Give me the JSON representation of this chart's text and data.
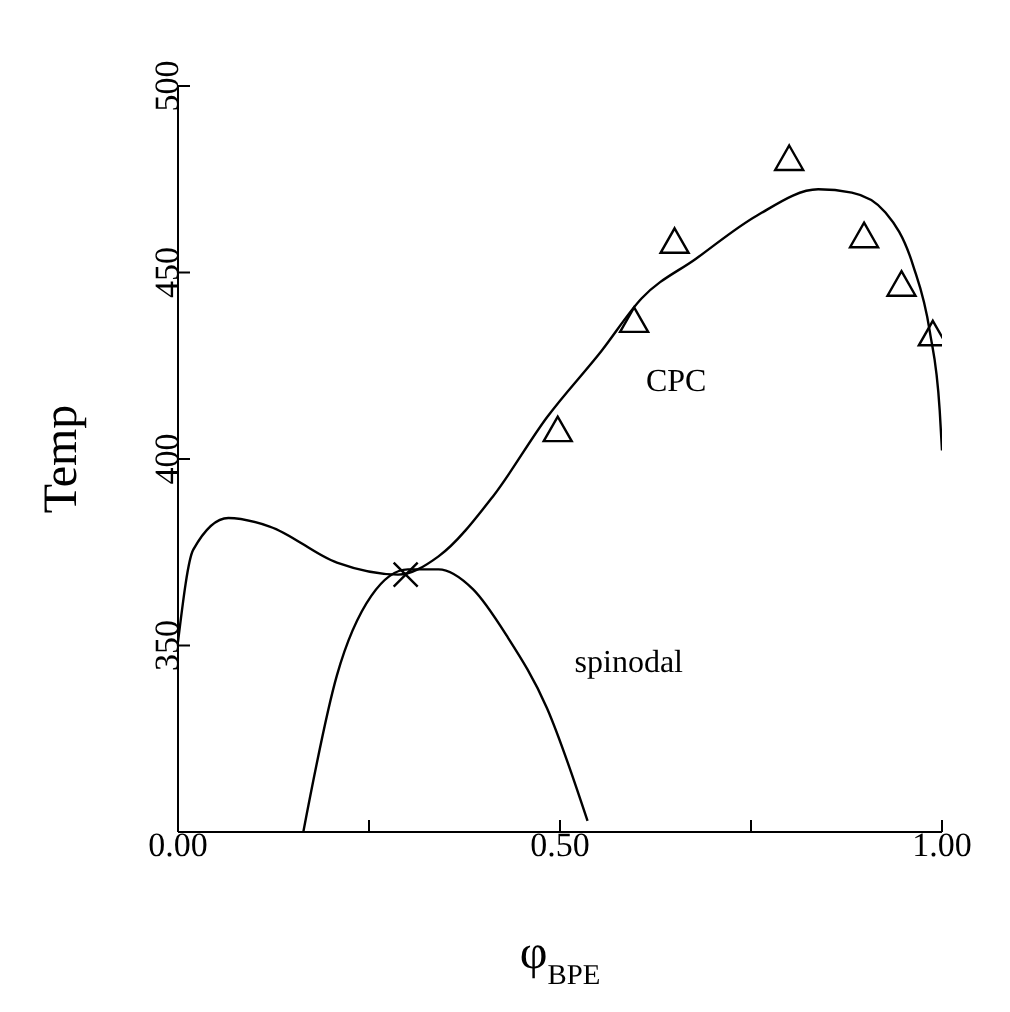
{
  "chart_data": {
    "type": "line",
    "xlabel": "φ$_{BPE}$",
    "ylabel": "Temp",
    "xlim": [
      0,
      1
    ],
    "ylim": [
      300,
      500
    ],
    "xticks": [
      {
        "value": 0,
        "label": "0.00"
      },
      {
        "value": 0.25,
        "label": null
      },
      {
        "value": 0.5,
        "label": "0.50"
      },
      {
        "value": 0.75,
        "label": null
      },
      {
        "value": 1,
        "label": "1.00"
      }
    ],
    "yticks": [
      350,
      400,
      450,
      500
    ],
    "grid": false,
    "series": [
      {
        "color": "#000000",
        "x": [
          0,
          0.02,
          0.066,
          0.12,
          0.208,
          0.288,
          0.341,
          0.412,
          0.483,
          0.554,
          0.607,
          0.678,
          0.758,
          0.838,
          0.882,
          0.926,
          0.962,
          0.984,
          0.997,
          1.0
        ],
        "values": [
          351,
          375.7,
          384.2,
          381.9,
          372.2,
          369,
          373.9,
          389.9,
          411.2,
          428.9,
          443.1,
          453.7,
          465.3,
          472.3,
          471.4,
          466.1,
          452,
          434.2,
          413,
          402.3
        ]
      },
      {
        "color": "#000000",
        "x": [
          0.164,
          0.208,
          0.253,
          0.301,
          0.341,
          0.386,
          0.43,
          0.483,
          0.536
        ],
        "values": [
          300,
          342,
          363.3,
          370.4,
          370.4,
          365.1,
          352.7,
          333.2,
          303
        ]
      },
      {
        "type": "scatter",
        "marker": "triangle",
        "color": "#000000",
        "x": [
          0.497,
          0.597,
          0.65,
          0.8,
          0.898,
          0.947,
          0.988
        ],
        "values": [
          407.6,
          436.9,
          458.1,
          480.3,
          459.6,
          446.6,
          433.3
        ]
      },
      {
        "type": "scatter",
        "marker": "cross",
        "color": "#000000",
        "x": [
          0.298
        ],
        "values": [
          369
        ]
      }
    ],
    "annotations": [
      "CPC",
      "spinodal"
    ]
  }
}
